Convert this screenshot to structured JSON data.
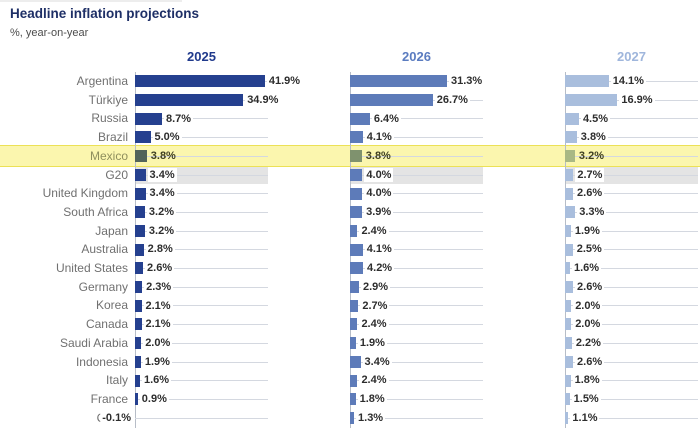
{
  "header": {
    "title": "Headline inflation projections",
    "subtitle": "%, year-on-year"
  },
  "chart_data": {
    "type": "bar",
    "orientation": "horizontal",
    "title": "Headline inflation projections",
    "subtitle": "%, year-on-year",
    "value_suffix": "%",
    "xmax_pct": 42.9,
    "grid": true,
    "categories": [
      "Argentina",
      "Türkiye",
      "Russia",
      "Brazil",
      "Mexico",
      "G20",
      "United Kingdom",
      "South Africa",
      "Japan",
      "Australia",
      "United States",
      "Germany",
      "Korea",
      "Canada",
      "Saudi Arabia",
      "Indonesia",
      "Italy",
      "France",
      "China"
    ],
    "series": [
      {
        "name": "2025",
        "bar_color": "#25408f",
        "header_color": "#203a8c",
        "values": [
          41.9,
          34.9,
          8.7,
          5.0,
          3.8,
          3.4,
          3.4,
          3.2,
          3.2,
          2.8,
          2.6,
          2.3,
          2.1,
          2.1,
          2.0,
          1.9,
          1.6,
          0.9,
          -0.1
        ]
      },
      {
        "name": "2026",
        "bar_color": "#5d7bb9",
        "header_color": "#5b7cc0",
        "values": [
          31.3,
          26.7,
          6.4,
          4.1,
          3.8,
          4.0,
          4.0,
          3.9,
          2.4,
          4.1,
          4.2,
          2.9,
          2.7,
          2.4,
          1.9,
          3.4,
          2.4,
          1.8,
          1.3
        ]
      },
      {
        "name": "2027",
        "bar_color": "#a9bedd",
        "header_color": "#9fb6dc",
        "values": [
          14.1,
          16.9,
          4.5,
          3.8,
          3.2,
          2.7,
          2.6,
          3.3,
          1.9,
          2.5,
          1.6,
          2.6,
          2.0,
          2.0,
          2.2,
          2.6,
          1.8,
          1.5,
          1.1
        ]
      }
    ],
    "highlight_row": {
      "label": "Mexico",
      "band_color": "#fbf6ae",
      "band_border": "#ece156",
      "bar_colors": [
        "#52645a",
        "#7f926e",
        "#a9b884"
      ],
      "label_color": "#8f8f5d",
      "value_color": "#3f3f22"
    },
    "reference_row": {
      "label": "G20",
      "band_color": "#e4e4e4"
    },
    "colors": {
      "gridline": "#d4d8e0",
      "axis_line": "#b7bdc7",
      "country_label": "#707070",
      "value_label": "#2d2d2d",
      "title": "#1e2f66",
      "subtitle": "#4d4d4d"
    }
  }
}
